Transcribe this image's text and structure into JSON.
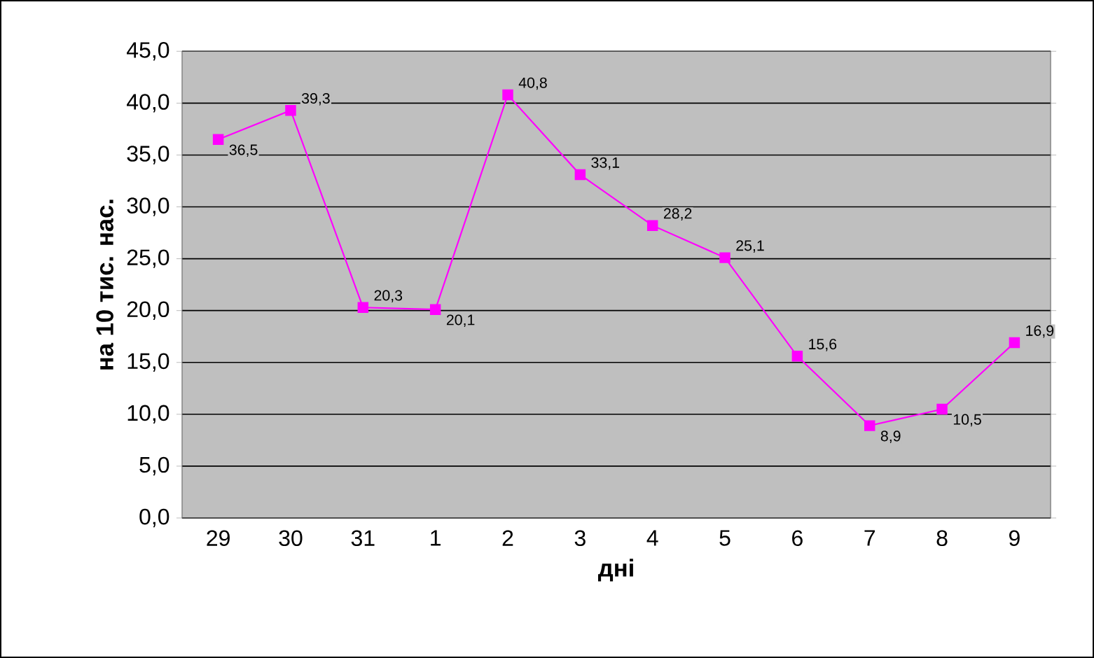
{
  "chart_data": {
    "type": "line",
    "xlabel": "дні",
    "ylabel": "на 10 тис. нас.",
    "categories": [
      "29",
      "30",
      "31",
      "1",
      "2",
      "3",
      "4",
      "5",
      "6",
      "7",
      "8",
      "9"
    ],
    "values": [
      36.5,
      39.3,
      20.3,
      20.1,
      40.8,
      33.1,
      28.2,
      25.1,
      15.6,
      8.9,
      10.5,
      16.9
    ],
    "value_labels": [
      "36,5",
      "39,3",
      "20,3",
      "20,1",
      "40,8",
      "33,1",
      "28,2",
      "25,1",
      "15,6",
      "8,9",
      "10,5",
      "16,9"
    ],
    "color": "#ff00ff",
    "marker": "square",
    "line_style": "solid",
    "grid": "y",
    "ylim": [
      0,
      45
    ],
    "yticks": [
      {
        "value": 0,
        "label": "0,0"
      },
      {
        "value": 5,
        "label": "5,0"
      },
      {
        "value": 10,
        "label": "10,0"
      },
      {
        "value": 15,
        "label": "15,0"
      },
      {
        "value": 20,
        "label": "20,0"
      },
      {
        "value": 25,
        "label": "25,0"
      },
      {
        "value": 30,
        "label": "30,0"
      },
      {
        "value": 35,
        "label": "35,0"
      },
      {
        "value": 40,
        "label": "40,0"
      },
      {
        "value": 45,
        "label": "45,0"
      }
    ]
  }
}
